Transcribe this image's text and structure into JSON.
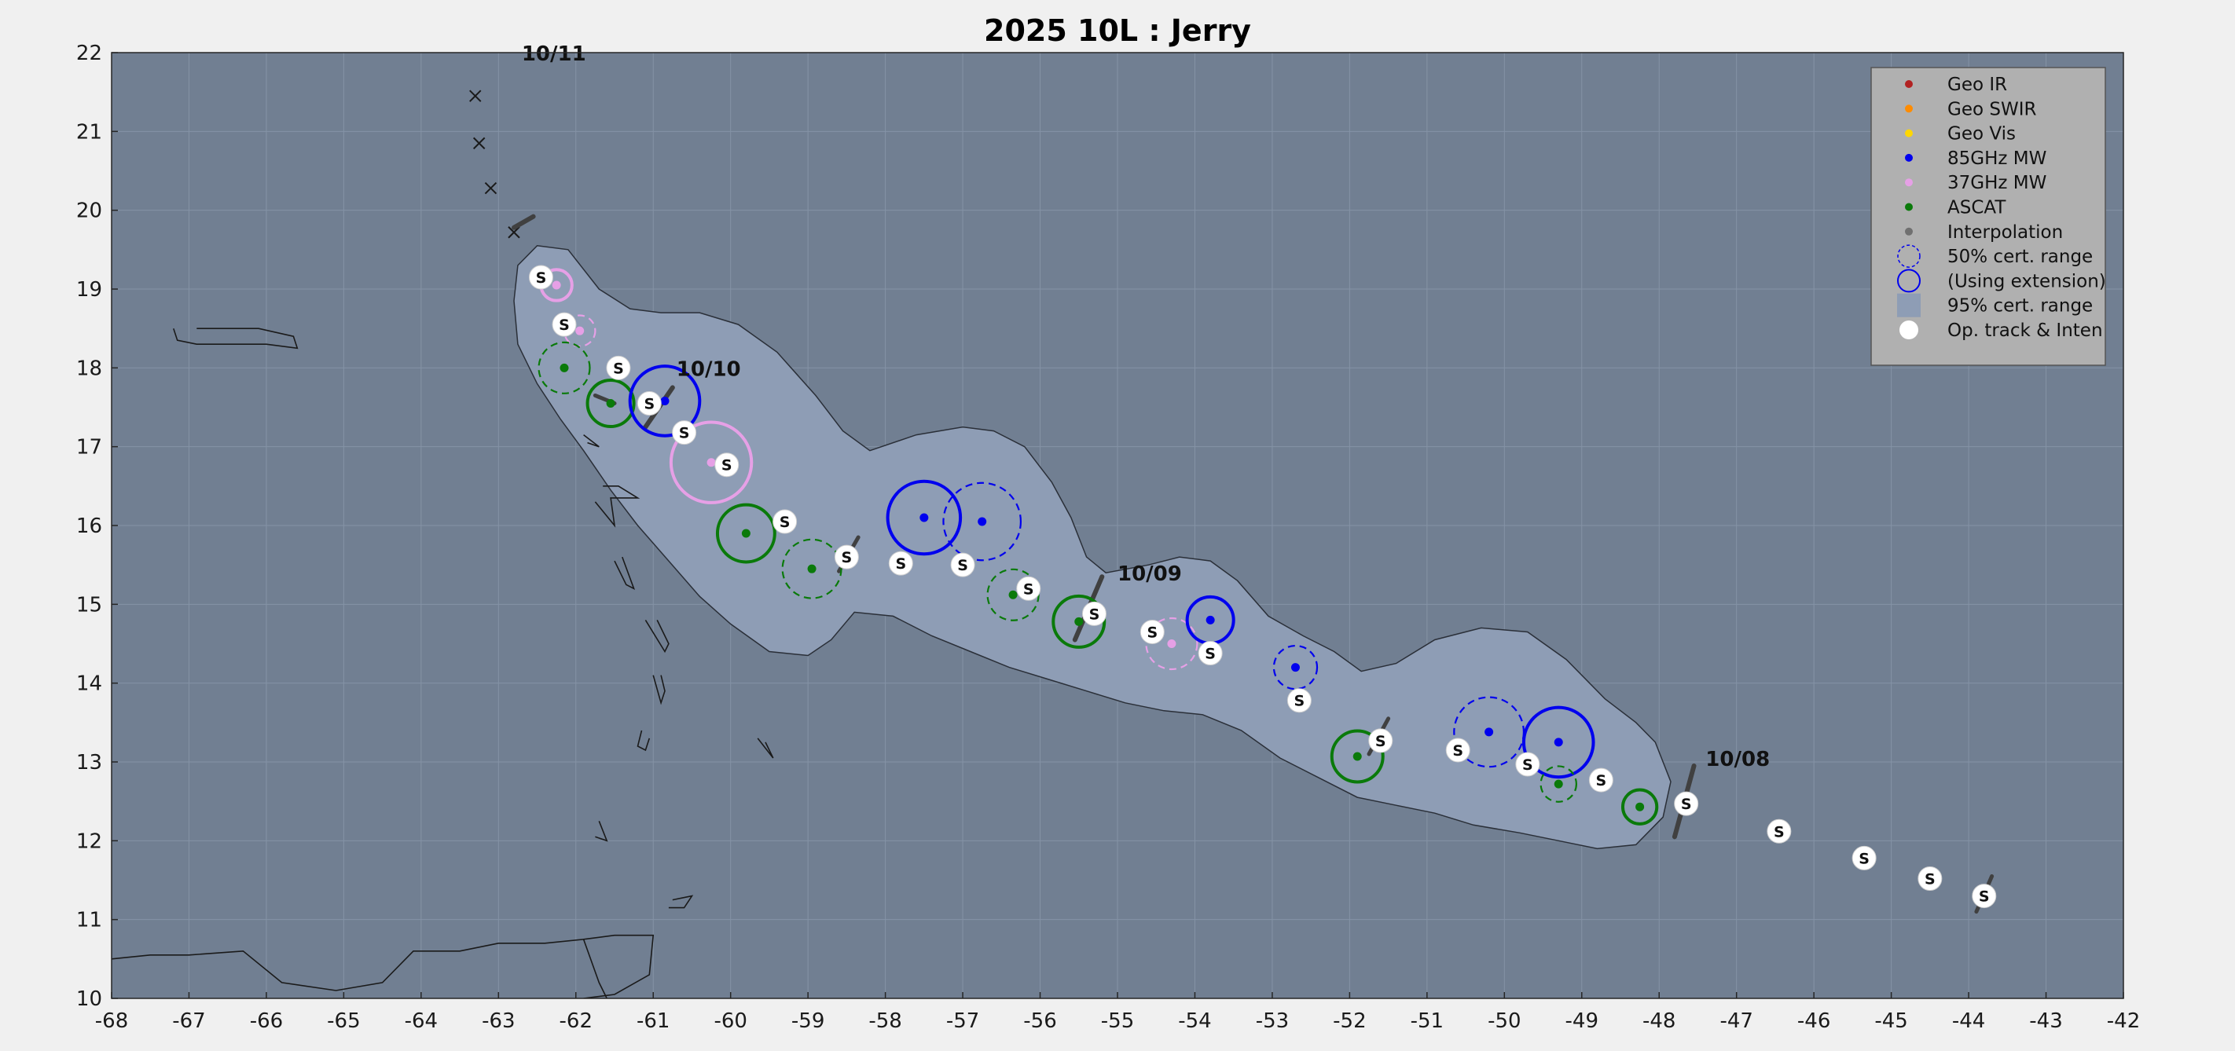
{
  "title": "2025  10L :  Jerry",
  "colors": {
    "figure_bg": "#f0f0f0",
    "ocean": "#717f92",
    "cone": "#8e9db5",
    "coast": "#1a1a1a",
    "geo_ir": "#b22222",
    "geo_swir": "#ff8c00",
    "geo_vis": "#ffd700",
    "mw85": "#0000ee",
    "mw37": "#e6a0e6",
    "ascat": "#0a7a0a",
    "interp": "#707070",
    "legend_bg": "#b0b0b0"
  },
  "chart_data": {
    "type": "scatter",
    "xlim": [
      -68,
      -42
    ],
    "ylim": [
      10,
      22
    ],
    "xticks": [
      "-68",
      "-67",
      "-66",
      "-65",
      "-64",
      "-63",
      "-62",
      "-61",
      "-60",
      "-59",
      "-58",
      "-57",
      "-56",
      "-55",
      "-54",
      "-53",
      "-52",
      "-51",
      "-50",
      "-49",
      "-48",
      "-47",
      "-46",
      "-45",
      "-44",
      "-43",
      "-42"
    ],
    "yticks": [
      "10",
      "11",
      "12",
      "13",
      "14",
      "15",
      "16",
      "17",
      "18",
      "19",
      "20",
      "21",
      "22"
    ],
    "grid": true,
    "legend_placement": "top-right",
    "legend": [
      {
        "label": "Geo IR",
        "symbol": "dot",
        "color": "geo_ir"
      },
      {
        "label": "Geo SWIR",
        "symbol": "dot",
        "color": "geo_swir"
      },
      {
        "label": "Geo Vis",
        "symbol": "dot",
        "color": "geo_vis"
      },
      {
        "label": "85GHz MW",
        "symbol": "dot",
        "color": "mw85"
      },
      {
        "label": "37GHz MW",
        "symbol": "dot",
        "color": "mw37"
      },
      {
        "label": "ASCAT",
        "symbol": "dot",
        "color": "ascat"
      },
      {
        "label": "Interpolation",
        "symbol": "dot",
        "color": "interp"
      },
      {
        "label": "50% cert. range",
        "symbol": "dashed-circle",
        "color": "mw85"
      },
      {
        "label": "(Using extension)",
        "symbol": "solid-circle",
        "color": "mw85"
      },
      {
        "label": "95% cert. range",
        "symbol": "square",
        "color": "cone"
      },
      {
        "label": "Op. track & Inten",
        "symbol": "white-dot",
        "color": "#ffffff"
      }
    ],
    "fixes": [
      {
        "type": "mw37",
        "lon": -62.25,
        "lat": 19.05,
        "r": 0.2,
        "dash": false
      },
      {
        "type": "mw37",
        "lon": -61.95,
        "lat": 18.47,
        "r": 0.2,
        "dash": true
      },
      {
        "type": "ascat",
        "lon": -62.15,
        "lat": 18.0,
        "r": 0.33,
        "dash": true
      },
      {
        "type": "ascat",
        "lon": -61.55,
        "lat": 17.55,
        "r": 0.3,
        "dash": false
      },
      {
        "type": "mw85",
        "lon": -60.85,
        "lat": 17.58,
        "r": 0.45,
        "dash": false
      },
      {
        "type": "mw37",
        "lon": -60.25,
        "lat": 16.8,
        "r": 0.52,
        "dash": false
      },
      {
        "type": "ascat",
        "lon": -59.8,
        "lat": 15.9,
        "r": 0.37,
        "dash": false
      },
      {
        "type": "ascat",
        "lon": -58.95,
        "lat": 15.45,
        "r": 0.38,
        "dash": true
      },
      {
        "type": "mw85",
        "lon": -57.5,
        "lat": 16.1,
        "r": 0.47,
        "dash": false
      },
      {
        "type": "mw85",
        "lon": -56.75,
        "lat": 16.05,
        "r": 0.5,
        "dash": true
      },
      {
        "type": "ascat",
        "lon": -56.35,
        "lat": 15.12,
        "r": 0.33,
        "dash": true
      },
      {
        "type": "ascat",
        "lon": -55.5,
        "lat": 14.78,
        "r": 0.33,
        "dash": false
      },
      {
        "type": "mw37",
        "lon": -54.3,
        "lat": 14.5,
        "r": 0.33,
        "dash": true
      },
      {
        "type": "mw85",
        "lon": -53.8,
        "lat": 14.8,
        "r": 0.3,
        "dash": false
      },
      {
        "type": "mw85",
        "lon": -52.7,
        "lat": 14.2,
        "r": 0.28,
        "dash": true
      },
      {
        "type": "ascat",
        "lon": -51.9,
        "lat": 13.07,
        "r": 0.33,
        "dash": false
      },
      {
        "type": "mw85",
        "lon": -50.2,
        "lat": 13.38,
        "r": 0.45,
        "dash": true
      },
      {
        "type": "mw85",
        "lon": -49.3,
        "lat": 13.25,
        "r": 0.45,
        "dash": false
      },
      {
        "type": "ascat",
        "lon": -49.3,
        "lat": 12.72,
        "r": 0.23,
        "dash": true
      },
      {
        "type": "ascat",
        "lon": -48.25,
        "lat": 12.43,
        "r": 0.22,
        "dash": false
      }
    ],
    "op_track": [
      {
        "lon": -62.45,
        "lat": 19.15,
        "label": "S"
      },
      {
        "lon": -62.15,
        "lat": 18.55,
        "label": "S"
      },
      {
        "lon": -61.45,
        "lat": 18.0,
        "label": "S"
      },
      {
        "lon": -61.05,
        "lat": 17.55,
        "label": "S"
      },
      {
        "lon": -60.6,
        "lat": 17.18,
        "label": "S"
      },
      {
        "lon": -60.05,
        "lat": 16.77,
        "label": "S"
      },
      {
        "lon": -59.3,
        "lat": 16.05,
        "label": "S"
      },
      {
        "lon": -58.5,
        "lat": 15.6,
        "label": "S"
      },
      {
        "lon": -57.8,
        "lat": 15.52,
        "label": "S"
      },
      {
        "lon": -57.0,
        "lat": 15.5,
        "label": "S"
      },
      {
        "lon": -56.15,
        "lat": 15.2,
        "label": "S"
      },
      {
        "lon": -55.3,
        "lat": 14.88,
        "label": "S"
      },
      {
        "lon": -54.55,
        "lat": 14.65,
        "label": "S"
      },
      {
        "lon": -53.8,
        "lat": 14.38,
        "label": "S"
      },
      {
        "lon": -52.65,
        "lat": 13.78,
        "label": "S"
      },
      {
        "lon": -51.6,
        "lat": 13.27,
        "label": "S"
      },
      {
        "lon": -50.6,
        "lat": 13.15,
        "label": "S"
      },
      {
        "lon": -49.7,
        "lat": 12.97,
        "label": "S"
      },
      {
        "lon": -48.75,
        "lat": 12.77,
        "label": "S"
      },
      {
        "lon": -47.65,
        "lat": 12.47,
        "label": "S"
      },
      {
        "lon": -46.45,
        "lat": 12.12,
        "label": "S"
      },
      {
        "lon": -45.35,
        "lat": 11.78,
        "label": "S"
      },
      {
        "lon": -44.5,
        "lat": 11.52,
        "label": "S"
      },
      {
        "lon": -43.8,
        "lat": 11.3,
        "label": "S"
      }
    ],
    "crosses": [
      {
        "lon": -63.3,
        "lat": 21.45
      },
      {
        "lon": -63.25,
        "lat": 20.85
      },
      {
        "lon": -63.1,
        "lat": 20.28
      },
      {
        "lon": -62.8,
        "lat": 19.72
      }
    ],
    "date_markers": [
      {
        "label": "10/11",
        "lon": -62.8,
        "lat": 19.78,
        "lon2": -62.55,
        "lat2": 19.92,
        "text_lon": -62.7,
        "text_lat": 21.9
      },
      {
        "label": "10/10",
        "lon": -61.1,
        "lat": 17.25,
        "lon2": -60.75,
        "lat2": 17.75,
        "text_lon": -60.7,
        "text_lat": 17.9
      },
      {
        "label": "10/09",
        "lon": -55.55,
        "lat": 14.55,
        "lon2": -55.2,
        "lat2": 15.35,
        "text_lon": -55.0,
        "text_lat": 15.3
      },
      {
        "label": "10/08",
        "lon": -47.8,
        "lat": 12.05,
        "lon2": -47.55,
        "lat2": 12.95,
        "text_lon": -47.4,
        "text_lat": 12.95
      }
    ],
    "wind_bars": [
      {
        "lon": -58.6,
        "lat": 15.42,
        "lon2": -58.35,
        "lat2": 15.85
      },
      {
        "lon": -51.75,
        "lat": 13.1,
        "lon2": -51.5,
        "lat2": 13.55
      },
      {
        "lon": -43.9,
        "lat": 11.1,
        "lon2": -43.7,
        "lat2": 11.55
      },
      {
        "lon": -61.75,
        "lat": 17.65,
        "lon2": -61.5,
        "lat2": 17.55
      }
    ],
    "cone_outline": [
      [
        -62.5,
        19.55
      ],
      [
        -62.1,
        19.5
      ],
      [
        -61.7,
        19.0
      ],
      [
        -61.3,
        18.75
      ],
      [
        -60.9,
        18.7
      ],
      [
        -60.4,
        18.7
      ],
      [
        -59.9,
        18.55
      ],
      [
        -59.4,
        18.2
      ],
      [
        -58.9,
        17.65
      ],
      [
        -58.55,
        17.2
      ],
      [
        -58.2,
        16.95
      ],
      [
        -57.6,
        17.15
      ],
      [
        -57.0,
        17.25
      ],
      [
        -56.6,
        17.2
      ],
      [
        -56.2,
        17.0
      ],
      [
        -55.85,
        16.55
      ],
      [
        -55.6,
        16.1
      ],
      [
        -55.4,
        15.6
      ],
      [
        -55.15,
        15.4
      ],
      [
        -54.6,
        15.5
      ],
      [
        -54.2,
        15.6
      ],
      [
        -53.8,
        15.55
      ],
      [
        -53.45,
        15.3
      ],
      [
        -53.05,
        14.85
      ],
      [
        -52.6,
        14.6
      ],
      [
        -52.2,
        14.4
      ],
      [
        -51.85,
        14.15
      ],
      [
        -51.4,
        14.25
      ],
      [
        -50.9,
        14.55
      ],
      [
        -50.3,
        14.7
      ],
      [
        -49.7,
        14.65
      ],
      [
        -49.2,
        14.3
      ],
      [
        -48.7,
        13.8
      ],
      [
        -48.3,
        13.5
      ],
      [
        -48.05,
        13.25
      ],
      [
        -47.85,
        12.75
      ],
      [
        -47.95,
        12.3
      ],
      [
        -48.3,
        11.95
      ],
      [
        -48.8,
        11.9
      ],
      [
        -49.3,
        12.0
      ],
      [
        -49.8,
        12.1
      ],
      [
        -50.4,
        12.2
      ],
      [
        -50.9,
        12.35
      ],
      [
        -51.4,
        12.45
      ],
      [
        -51.9,
        12.55
      ],
      [
        -52.4,
        12.8
      ],
      [
        -52.9,
        13.05
      ],
      [
        -53.4,
        13.4
      ],
      [
        -53.9,
        13.6
      ],
      [
        -54.4,
        13.65
      ],
      [
        -54.9,
        13.75
      ],
      [
        -55.4,
        13.9
      ],
      [
        -55.9,
        14.05
      ],
      [
        -56.4,
        14.2
      ],
      [
        -56.9,
        14.4
      ],
      [
        -57.4,
        14.6
      ],
      [
        -57.9,
        14.85
      ],
      [
        -58.4,
        14.9
      ],
      [
        -58.7,
        14.55
      ],
      [
        -59.0,
        14.35
      ],
      [
        -59.5,
        14.4
      ],
      [
        -60.0,
        14.75
      ],
      [
        -60.4,
        15.1
      ],
      [
        -60.8,
        15.55
      ],
      [
        -61.2,
        16.0
      ],
      [
        -61.55,
        16.45
      ],
      [
        -61.9,
        16.95
      ],
      [
        -62.2,
        17.35
      ],
      [
        -62.5,
        17.8
      ],
      [
        -62.75,
        18.3
      ],
      [
        -62.8,
        18.85
      ],
      [
        -62.75,
        19.3
      ]
    ],
    "coastlines": [
      [
        [
          -67.2,
          18.5
        ],
        [
          -67.15,
          18.35
        ],
        [
          -66.9,
          18.3
        ],
        [
          -66.0,
          18.3
        ],
        [
          -65.6,
          18.25
        ],
        [
          -65.65,
          18.4
        ],
        [
          -66.1,
          18.5
        ],
        [
          -66.9,
          18.5
        ]
      ],
      [
        [
          -68.0,
          10.5
        ],
        [
          -67.5,
          10.55
        ],
        [
          -67.0,
          10.55
        ],
        [
          -66.3,
          10.6
        ],
        [
          -65.8,
          10.2
        ],
        [
          -65.1,
          10.1
        ],
        [
          -64.5,
          10.2
        ],
        [
          -64.1,
          10.6
        ],
        [
          -63.5,
          10.6
        ],
        [
          -63.0,
          10.7
        ],
        [
          -62.4,
          10.7
        ],
        [
          -61.9,
          10.75
        ],
        [
          -61.7,
          10.2
        ],
        [
          -61.6,
          10.0
        ]
      ],
      [
        [
          -61.9,
          10.75
        ],
        [
          -61.5,
          10.8
        ],
        [
          -61.0,
          10.8
        ],
        [
          -61.05,
          10.3
        ],
        [
          -61.5,
          10.05
        ],
        [
          -61.9,
          10.0
        ]
      ],
      [
        [
          -60.75,
          11.25
        ],
        [
          -60.5,
          11.3
        ],
        [
          -60.6,
          11.15
        ],
        [
          -60.8,
          11.15
        ]
      ],
      [
        [
          -61.15,
          13.4
        ],
        [
          -61.2,
          13.2
        ],
        [
          -61.1,
          13.15
        ],
        [
          -61.05,
          13.3
        ]
      ],
      [
        [
          -61.0,
          14.1
        ],
        [
          -60.9,
          13.75
        ],
        [
          -60.85,
          13.9
        ],
        [
          -60.9,
          14.1
        ]
      ],
      [
        [
          -61.1,
          14.8
        ],
        [
          -60.85,
          14.4
        ],
        [
          -60.8,
          14.5
        ],
        [
          -60.95,
          14.8
        ]
      ],
      [
        [
          -61.4,
          15.6
        ],
        [
          -61.25,
          15.2
        ],
        [
          -61.35,
          15.25
        ],
        [
          -61.5,
          15.55
        ]
      ],
      [
        [
          -61.75,
          16.3
        ],
        [
          -61.5,
          16.0
        ],
        [
          -61.55,
          16.35
        ],
        [
          -61.2,
          16.35
        ],
        [
          -61.45,
          16.5
        ],
        [
          -61.65,
          16.5
        ]
      ],
      [
        [
          -61.9,
          17.15
        ],
        [
          -61.7,
          17.0
        ],
        [
          -61.85,
          17.05
        ]
      ],
      [
        [
          -59.65,
          13.3
        ],
        [
          -59.45,
          13.05
        ],
        [
          -59.55,
          13.25
        ]
      ],
      [
        [
          -61.7,
          12.25
        ],
        [
          -61.6,
          12.0
        ],
        [
          -61.75,
          12.05
        ]
      ]
    ]
  }
}
